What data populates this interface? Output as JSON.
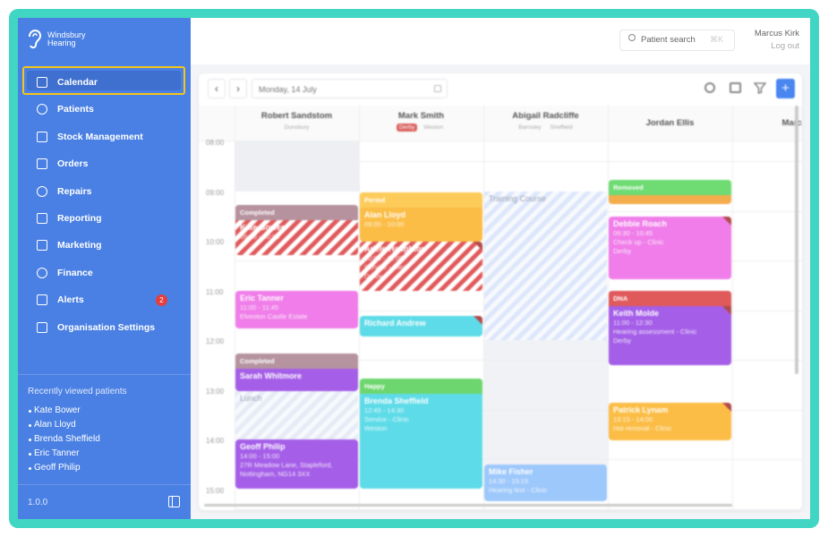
{
  "sidebar": {
    "brand": "Windsbury Hearing",
    "nav": [
      "Calendar",
      "Patients",
      "Stock Management",
      "Orders",
      "Repairs",
      "Reporting",
      "Marketing",
      "Finance",
      "Alerts",
      "Organisation Settings"
    ],
    "alerts_badge": "2",
    "recent_title": "Recently viewed patients",
    "recent": [
      "Kate Bower",
      "Alan Lloyd",
      "Brenda Sheffield",
      "Eric Tanner",
      "Geoff Philip"
    ],
    "version": "1.0.0"
  },
  "header": {
    "search": "Patient search",
    "shortcut": "⌘K",
    "user": "Marcus Kirk",
    "logout": "Log out"
  },
  "calendar": {
    "date": "Monday, 14 July",
    "times": [
      "08:00",
      "09:00",
      "10:00",
      "11:00",
      "12:00",
      "13:00",
      "14:00",
      "15:00"
    ],
    "columns": [
      {
        "name": "Robert Sandstom",
        "tags": [
          "Dunsbury"
        ]
      },
      {
        "name": "Mark Smith",
        "tags": [
          "Derby",
          "Weston"
        ]
      },
      {
        "name": "Abigail Radcliffe",
        "tags": [
          "Barnsley",
          "Sheffield"
        ]
      },
      {
        "name": "Jordan Ellis",
        "tags": []
      },
      {
        "name": "Marcu",
        "tags": []
      }
    ],
    "appointments": [
      {
        "status": "Completed",
        "title": "Kate Bower",
        "lines": [
          "09:00 - 10:00"
        ]
      },
      {
        "title": "Eric Tanner",
        "lines": [
          "11:00 - 11:45",
          "Elveston Castle Estate"
        ]
      },
      {
        "status": "Completed",
        "title": "Sarah Whitmore",
        "lines": []
      },
      {
        "title": "Lunch",
        "lines": []
      },
      {
        "title": "Geoff Philip",
        "lines": [
          "14:00 - 15:00",
          "27R Meadow Lane, Stapleford,",
          "Nottingham, NG14 3XX"
        ]
      },
      {
        "status": "Period",
        "title": "Alan Lloyd",
        "lines": [
          "09:00 - 10:00"
        ]
      },
      {
        "title": "Adele Haughton",
        "lines": [
          "10:00 - 11:00",
          "Service - Clinic",
          "Derby"
        ]
      },
      {
        "title": "Richard Andrew",
        "lines": []
      },
      {
        "status": "Happy",
        "title": "Brenda Sheffield",
        "lines": [
          "12:45 - 14:30",
          "Service - Clinic",
          "Weston"
        ]
      },
      {
        "title": "Training Course",
        "lines": []
      },
      {
        "title": "Mike Fisher",
        "lines": [
          "14:30 - 15:15",
          "Hearing test - Clinic"
        ]
      },
      {
        "status": "Removed",
        "lines": []
      },
      {
        "title": "Debbie Roach",
        "lines": [
          "09:30 - 10:45",
          "Check up - Clinic",
          "Derby"
        ]
      },
      {
        "status": "DNA",
        "title": "Keith Molde",
        "lines": [
          "11:00 - 12:30",
          "Hearing assessment - Clinic",
          "Derby"
        ]
      },
      {
        "title": "Patrick Lynam",
        "lines": [
          "13:15 - 14:00",
          "Hot removal - Clinic"
        ]
      }
    ]
  }
}
